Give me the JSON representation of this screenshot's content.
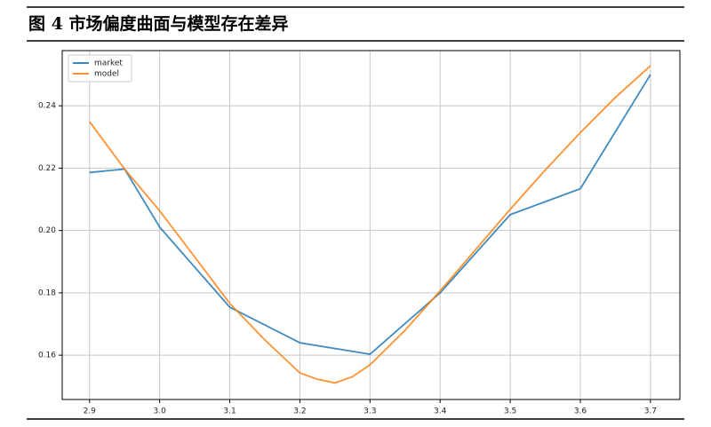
{
  "chart_data": {
    "type": "line",
    "title": "图 4 市场偏度曲面与模型存在差异",
    "series": [
      {
        "name": "market",
        "color": "#1f77b4",
        "x": [
          2.9,
          2.95,
          3.0,
          3.1,
          3.2,
          3.3,
          3.4,
          3.5,
          3.6,
          3.7
        ],
        "values": [
          0.2186,
          0.2197,
          0.2011,
          0.1754,
          0.164,
          0.1603,
          0.18,
          0.2051,
          0.2134,
          0.25
        ]
      },
      {
        "name": "model",
        "color": "#ff7f0e",
        "x": [
          2.9,
          2.95,
          3.0,
          3.05,
          3.1,
          3.15,
          3.2,
          3.225,
          3.25,
          3.275,
          3.3,
          3.35,
          3.4,
          3.45,
          3.5,
          3.55,
          3.6,
          3.65,
          3.7
        ],
        "values": [
          0.2349,
          0.2197,
          0.2063,
          0.1915,
          0.1766,
          0.1649,
          0.1543,
          0.1523,
          0.1511,
          0.1531,
          0.1569,
          0.168,
          0.1806,
          0.1937,
          0.2068,
          0.2194,
          0.2314,
          0.2427,
          0.2528
        ]
      }
    ],
    "xlim": [
      2.861,
      3.742
    ],
    "xticks": [
      2.9,
      {
        "value": 3.0,
        "label": "3.0"
      },
      3.1,
      3.2,
      3.3,
      3.4,
      3.5,
      3.6,
      3.7
    ],
    "ylim": [
      0.1458,
      0.2577
    ],
    "yticks": [
      0.16,
      0.18,
      {
        "value": 0.2,
        "label": "0.20"
      },
      0.22,
      0.24
    ],
    "grid": true,
    "legend": "upper-left"
  }
}
